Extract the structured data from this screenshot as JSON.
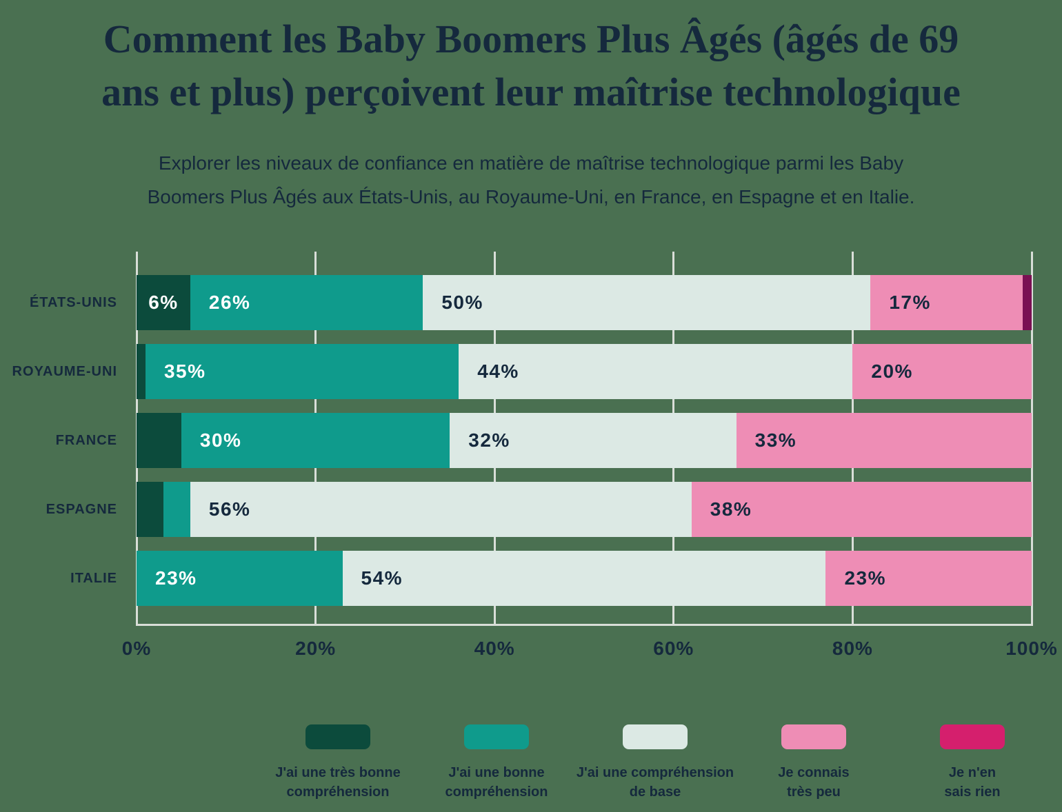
{
  "header": {
    "title": "Comment les Baby Boomers Plus Âgés (âgés de 69\nans et plus) perçoivent leur maîtrise technologique",
    "subtitle": "Explorer les niveaux de confiance en matière de maîtrise technologique parmi les Baby\nBoomers Plus Âgés aux États-Unis, au Royaume-Uni, en France, en Espagne et en Italie."
  },
  "colors": {
    "background": "#4A7051",
    "text": "#15293D",
    "gridline": "#D9DED8",
    "very_good": "#0C4B3C",
    "good": "#0F9B8C",
    "basic": "#DCE9E4",
    "very_little": "#EE8DB5",
    "nothing_bar": "#7A1053",
    "nothing_legend": "#D51F6D"
  },
  "chart_data": {
    "type": "bar",
    "orientation": "horizontal",
    "stacked": true,
    "grid": true,
    "legend_position": "bottom",
    "xlim": [
      0,
      100
    ],
    "x_ticks": [
      "0%",
      "20%",
      "40%",
      "60%",
      "80%",
      "100%"
    ],
    "categories": [
      "ÉTATS-UNIS",
      "ROYAUME-UNI",
      "FRANCE",
      "ESPAGNE",
      "ITALIE"
    ],
    "series": [
      {
        "name": "J'ai une très bonne compréhension",
        "bar_color": "#0C4B3C",
        "label_color": "#FFFFFF",
        "values": [
          6,
          1,
          5,
          3,
          0
        ],
        "labels": [
          "6%",
          "",
          "",
          "",
          ""
        ]
      },
      {
        "name": "J'ai une bonne compréhension",
        "bar_color": "#0F9B8C",
        "label_color": "#FFFFFF",
        "values": [
          26,
          35,
          30,
          3,
          23
        ],
        "labels": [
          "26%",
          "35%",
          "30%",
          "",
          "23%"
        ]
      },
      {
        "name": "J'ai une compréhension de base",
        "bar_color": "#DCE9E4",
        "label_color": "#15293D",
        "values": [
          50,
          44,
          32,
          56,
          54
        ],
        "labels": [
          "50%",
          "44%",
          "32%",
          "56%",
          "54%"
        ]
      },
      {
        "name": "Je connais très peu",
        "bar_color": "#EE8DB5",
        "label_color": "#15293D",
        "values": [
          17,
          20,
          33,
          38,
          23
        ],
        "labels": [
          "17%",
          "20%",
          "33%",
          "38%",
          "23%"
        ]
      },
      {
        "name": "Je n'en sais rien",
        "bar_color": "#7A1053",
        "label_color": "#FFFFFF",
        "values": [
          1,
          0,
          0,
          0,
          0
        ],
        "labels": [
          "",
          "",
          "",
          "",
          ""
        ]
      }
    ]
  },
  "legend": {
    "items": [
      {
        "label": "J'ai une très bonne\ncompréhension",
        "swatch_color": "#0C4B3C"
      },
      {
        "label": "J'ai une bonne\ncompréhension",
        "swatch_color": "#0F9B8C"
      },
      {
        "label": "J'ai une compréhension\nde base",
        "swatch_color": "#DCE9E4"
      },
      {
        "label": "Je connais\ntrès peu",
        "swatch_color": "#EE8DB5"
      },
      {
        "label": "Je n'en\nsais rien",
        "swatch_color": "#D51F6D"
      }
    ]
  }
}
